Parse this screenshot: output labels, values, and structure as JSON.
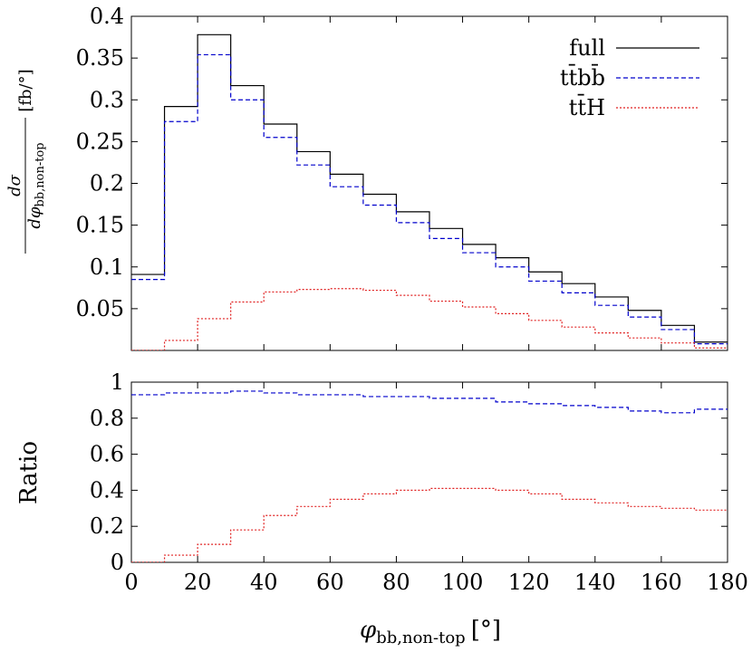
{
  "chart_data": [
    {
      "type": "step",
      "panel": "top",
      "ylabel": "dσ / dφbb,non-top [fb/°]",
      "ylabel_parts": {
        "num": "dσ",
        "den": "dφ",
        "den_sub": "bb,non-top",
        "unit": "[fb/°]"
      },
      "xlim": [
        0,
        180
      ],
      "ylim": [
        0,
        0.4
      ],
      "yticks": [
        0.05,
        0.1,
        0.15,
        0.2,
        0.25,
        0.3,
        0.35,
        0.4
      ],
      "ytick_labels": [
        "0.05",
        "0.1",
        "0.15",
        "0.2",
        "0.25",
        "0.3",
        "0.35",
        "0.4"
      ],
      "legend_position": "top-right",
      "bin_edges": [
        0,
        10,
        20,
        30,
        40,
        50,
        60,
        70,
        80,
        90,
        100,
        110,
        120,
        130,
        140,
        150,
        160,
        170,
        180
      ],
      "series": [
        {
          "name": "full",
          "color": "#000000",
          "dash": "solid",
          "values": [
            0.091,
            0.292,
            0.378,
            0.317,
            0.271,
            0.238,
            0.211,
            0.187,
            0.166,
            0.146,
            0.127,
            0.111,
            0.094,
            0.08,
            0.064,
            0.048,
            0.03,
            0.01
          ]
        },
        {
          "name": "tt̄bb̄",
          "color": "#0000cc",
          "dash": "dashed",
          "values": [
            0.085,
            0.274,
            0.354,
            0.3,
            0.255,
            0.222,
            0.196,
            0.174,
            0.153,
            0.134,
            0.117,
            0.1,
            0.083,
            0.069,
            0.054,
            0.04,
            0.025,
            0.008
          ]
        },
        {
          "name": "tt̄H",
          "color": "#e02020",
          "dash": "dotted",
          "values": [
            0.0,
            0.012,
            0.038,
            0.058,
            0.07,
            0.073,
            0.074,
            0.072,
            0.066,
            0.059,
            0.052,
            0.044,
            0.036,
            0.028,
            0.021,
            0.015,
            0.009,
            0.003
          ]
        }
      ]
    },
    {
      "type": "step",
      "panel": "bottom",
      "ylabel": "Ratio",
      "xlabel": "φbb,non-top [°]",
      "xlabel_parts": {
        "sym": "φ",
        "sub": "bb,non-top",
        "unit": "[°]"
      },
      "xlim": [
        0,
        180
      ],
      "ylim": [
        0,
        1
      ],
      "xticks": [
        0,
        20,
        40,
        60,
        80,
        100,
        120,
        140,
        160,
        180
      ],
      "xtick_labels": [
        "0",
        "20",
        "40",
        "60",
        "80",
        "100",
        "120",
        "140",
        "160",
        "180"
      ],
      "yticks": [
        0,
        0.2,
        0.4,
        0.6,
        0.8,
        1
      ],
      "ytick_labels": [
        "0",
        "0.2",
        "0.4",
        "0.6",
        "0.8",
        "1"
      ],
      "bin_edges": [
        0,
        10,
        20,
        30,
        40,
        50,
        60,
        70,
        80,
        90,
        100,
        110,
        120,
        130,
        140,
        150,
        160,
        170,
        180
      ],
      "series": [
        {
          "name": "tt̄bb̄",
          "color": "#0000cc",
          "dash": "dashed",
          "values": [
            0.93,
            0.94,
            0.94,
            0.95,
            0.94,
            0.93,
            0.93,
            0.92,
            0.92,
            0.91,
            0.91,
            0.89,
            0.88,
            0.87,
            0.86,
            0.84,
            0.83,
            0.85
          ]
        },
        {
          "name": "tt̄H",
          "color": "#e02020",
          "dash": "dotted",
          "values": [
            0.0,
            0.04,
            0.1,
            0.18,
            0.26,
            0.31,
            0.35,
            0.38,
            0.4,
            0.41,
            0.41,
            0.4,
            0.38,
            0.35,
            0.33,
            0.31,
            0.3,
            0.29
          ]
        }
      ]
    }
  ]
}
